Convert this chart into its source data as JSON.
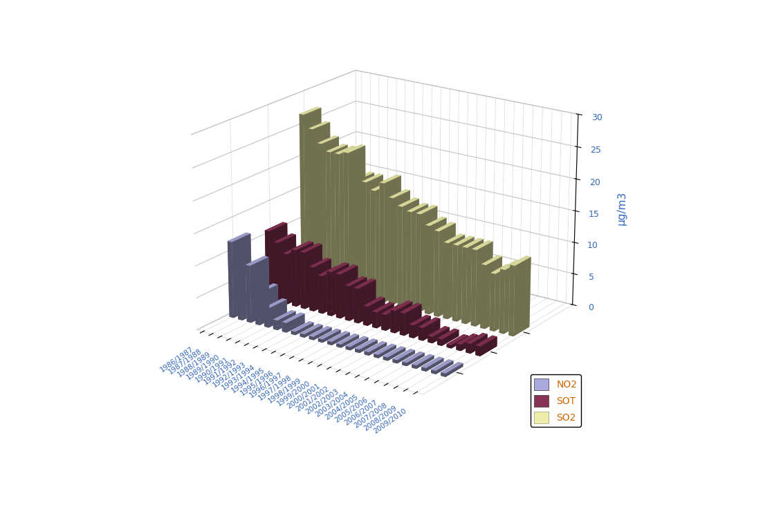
{
  "categories": [
    "1986/1987",
    "1987/1988",
    "1988/1989",
    "1989/1990",
    "1990/1991",
    "1991/1992",
    "1992/1993",
    "1993/1994",
    "1994/1995",
    "1995/1996",
    "1996/1997",
    "1997/1998",
    "1998/1999",
    "1999/2000",
    "2000/2001",
    "2001/2002",
    "2002/2003",
    "2003/2004",
    "2004/2005",
    "2005/2006",
    "2006/2007",
    "2007/2008",
    "2008/2009",
    "2009/2010"
  ],
  "NO2": [
    12,
    8,
    9,
    5,
    3,
    1.5,
    1.5,
    0.5,
    0.5,
    0.5,
    0.5,
    0.5,
    0.5,
    0.5,
    0.5,
    0.5,
    0.5,
    0.5,
    0.5,
    0.5,
    0.5,
    0.5,
    0.5,
    0.5
  ],
  "SOT": [
    11,
    9.5,
    8,
    9,
    9,
    7,
    6,
    7,
    7,
    5.5,
    5.5,
    3,
    2.5,
    2.5,
    3.5,
    3.5,
    2,
    2,
    1,
    1,
    0.5,
    1,
    1.5,
    1.5
  ],
  "SO2": [
    27,
    25,
    23,
    22,
    22,
    22.5,
    18.5,
    18.5,
    17.5,
    19,
    17,
    16,
    15.5,
    15.5,
    14,
    13.5,
    12,
    12,
    12,
    12,
    10,
    9,
    10,
    11
  ],
  "ylabel": "μg/m3",
  "yticks": [
    0,
    5,
    10,
    15,
    20,
    25,
    30
  ],
  "legend_labels": [
    "NO2",
    "SOT",
    "SO2"
  ],
  "NO2_face": "#aaaadd",
  "NO2_side": "#8888bb",
  "NO2_top": "#9999cc",
  "SOT_face": "#883355",
  "SOT_side": "#662233",
  "SOT_top": "#772244",
  "SO2_face": "#eeeeaa",
  "SO2_side": "#cccc88",
  "SO2_top": "#dddd99",
  "background_color": "#ffffff",
  "text_color": "#3366bb",
  "legend_text_color": "#cc6600",
  "elev": 20,
  "azim": -55
}
